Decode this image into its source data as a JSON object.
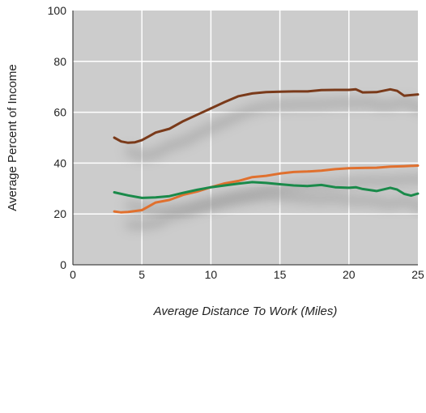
{
  "chart_data": {
    "type": "line",
    "title": "",
    "xlabel": "Average Distance To Work (Miles)",
    "ylabel": "Average Percent of Income",
    "xlim": [
      0,
      25
    ],
    "ylim": [
      0,
      100
    ],
    "xticks": [
      "0",
      "5",
      "10",
      "15",
      "20",
      "25"
    ],
    "yticks": [
      "0",
      "20",
      "40",
      "60",
      "80",
      "100"
    ],
    "grid": true,
    "legend": "none",
    "plot_background": "#cccccc",
    "grid_color": "#ffffff",
    "series": [
      {
        "color": "#7a3a1a",
        "points": [
          [
            3,
            50
          ],
          [
            3.5,
            48.5
          ],
          [
            4,
            48
          ],
          [
            4.5,
            48.2
          ],
          [
            5,
            49
          ],
          [
            5.5,
            50.5
          ],
          [
            6,
            52
          ],
          [
            7,
            53.5
          ],
          [
            8,
            56.5
          ],
          [
            9,
            59
          ],
          [
            10,
            61.5
          ],
          [
            11,
            64
          ],
          [
            12,
            66.3
          ],
          [
            13,
            67.4
          ],
          [
            14,
            67.9
          ],
          [
            15,
            68.1
          ],
          [
            16,
            68.2
          ],
          [
            17,
            68.2
          ],
          [
            18,
            68.7
          ],
          [
            19,
            68.8
          ],
          [
            20,
            68.8
          ],
          [
            20.5,
            69
          ],
          [
            21,
            67.8
          ],
          [
            22,
            67.9
          ],
          [
            23,
            69
          ],
          [
            23.5,
            68.4
          ],
          [
            24,
            66.5
          ],
          [
            25,
            67
          ]
        ]
      },
      {
        "color": "#e0702e",
        "points": [
          [
            3,
            21
          ],
          [
            3.5,
            20.6
          ],
          [
            4,
            20.8
          ],
          [
            5,
            21.5
          ],
          [
            6,
            24.5
          ],
          [
            7,
            25.5
          ],
          [
            8,
            27.5
          ],
          [
            9,
            28.8
          ],
          [
            10,
            30.5
          ],
          [
            11,
            32
          ],
          [
            12,
            33
          ],
          [
            13,
            34.5
          ],
          [
            14,
            35
          ],
          [
            15,
            35.9
          ],
          [
            16,
            36.5
          ],
          [
            17,
            36.7
          ],
          [
            18,
            37
          ],
          [
            19,
            37.6
          ],
          [
            20,
            38
          ],
          [
            21,
            38.1
          ],
          [
            22,
            38.2
          ],
          [
            23,
            38.6
          ],
          [
            24,
            38.8
          ],
          [
            25,
            39
          ]
        ]
      },
      {
        "color": "#1a8a4a",
        "points": [
          [
            3,
            28.5
          ],
          [
            4,
            27.3
          ],
          [
            5,
            26.3
          ],
          [
            6,
            26.5
          ],
          [
            7,
            27
          ],
          [
            8,
            28.3
          ],
          [
            9,
            29.5
          ],
          [
            10,
            30.5
          ],
          [
            11,
            31.2
          ],
          [
            12,
            31.9
          ],
          [
            13,
            32.5
          ],
          [
            14,
            32.2
          ],
          [
            15,
            31.7
          ],
          [
            16,
            31.2
          ],
          [
            17,
            31
          ],
          [
            18,
            31.4
          ],
          [
            19,
            30.5
          ],
          [
            20,
            30.3
          ],
          [
            20.5,
            30.5
          ],
          [
            21,
            29.8
          ],
          [
            22,
            29
          ],
          [
            23,
            30.3
          ],
          [
            23.5,
            29.6
          ],
          [
            24,
            27.9
          ],
          [
            24.5,
            27.2
          ],
          [
            25,
            28
          ]
        ]
      }
    ]
  }
}
